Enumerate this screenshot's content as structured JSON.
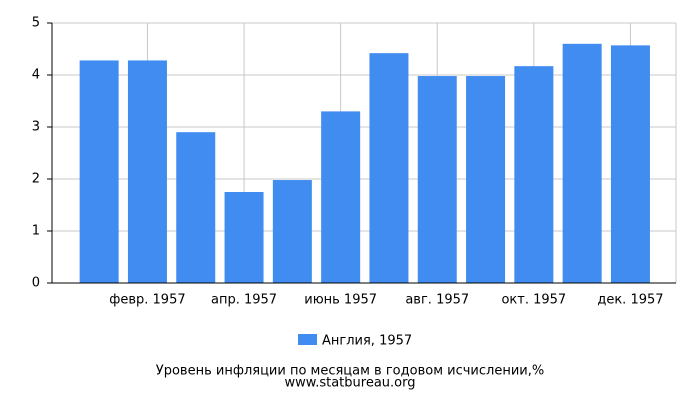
{
  "chart_data": {
    "type": "bar",
    "categories": [
      null,
      "февр. 1957",
      null,
      "апр. 1957",
      null,
      "июнь 1957",
      null,
      "авг. 1957",
      null,
      "окт. 1957",
      null,
      "дек. 1957"
    ],
    "series": [
      {
        "name": "Англия, 1957",
        "color": "#418cf0",
        "values": [
          4.28,
          4.28,
          2.9,
          1.75,
          1.98,
          3.3,
          4.42,
          3.98,
          3.98,
          4.17,
          4.6,
          4.57
        ]
      }
    ],
    "ylim": [
      0,
      5
    ],
    "yticks": [
      0,
      1,
      2,
      3,
      4,
      5
    ],
    "grid": true,
    "legend": "bottom",
    "caption": "Уровень инфляции по месяцам в годовом исчислении,%",
    "source": "www.statbureau.org"
  }
}
